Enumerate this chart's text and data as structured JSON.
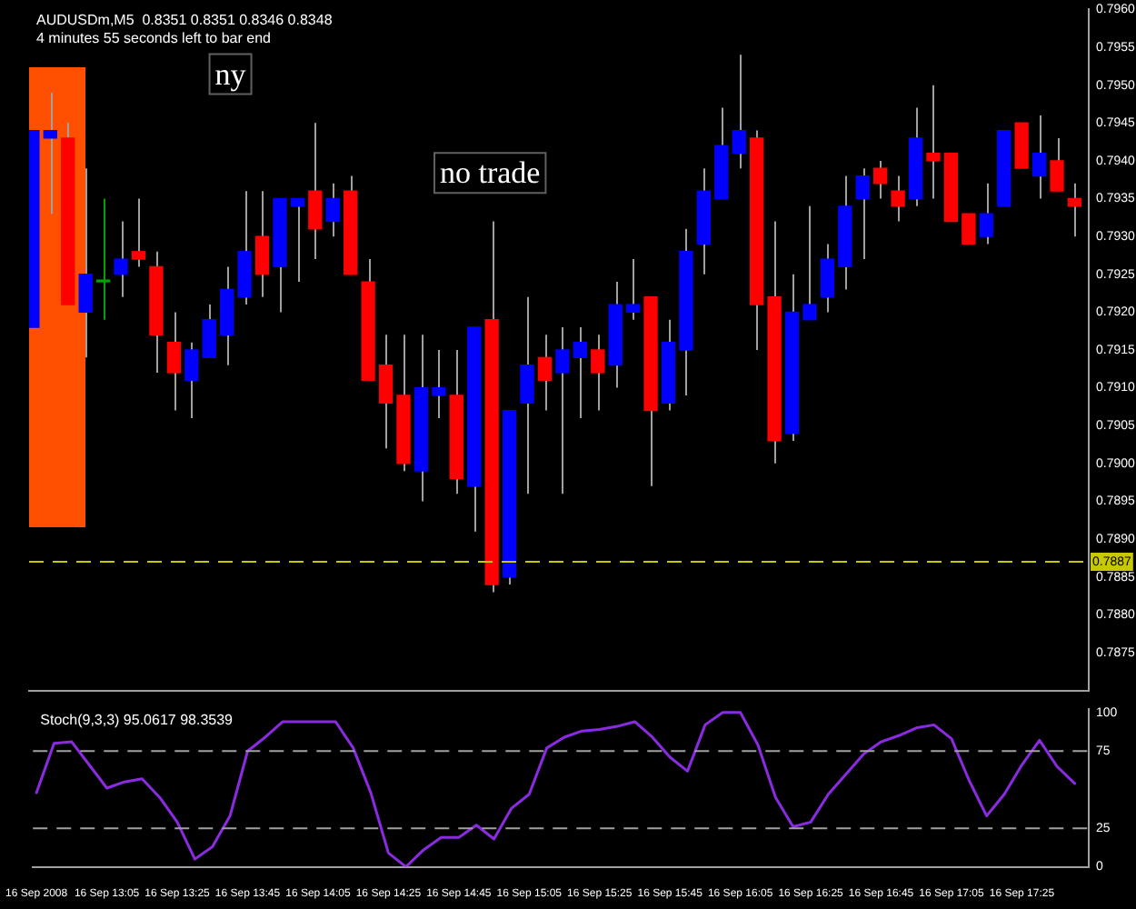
{
  "chart_data": [
    {
      "type": "candlestick",
      "title": "AUDUSDm,M5  0.8351 0.8351 0.8346 0.8348",
      "subtitle": "4 minutes 55 seconds left to bar end",
      "annotations": [
        "ny",
        "no trade"
      ],
      "x": [
        "2008-09-16T12:45",
        "2008-09-16T12:50",
        "2008-09-16T12:55",
        "2008-09-16T13:00",
        "2008-09-16T13:05",
        "2008-09-16T13:10",
        "2008-09-16T13:15",
        "2008-09-16T13:20",
        "2008-09-16T13:25",
        "2008-09-16T13:30",
        "2008-09-16T13:35",
        "2008-09-16T13:40",
        "2008-09-16T13:45",
        "2008-09-16T13:50",
        "2008-09-16T13:55",
        "2008-09-16T14:00",
        "2008-09-16T14:05",
        "2008-09-16T14:10",
        "2008-09-16T14:15",
        "2008-09-16T14:20",
        "2008-09-16T14:25",
        "2008-09-16T14:30",
        "2008-09-16T14:35",
        "2008-09-16T14:40",
        "2008-09-16T14:45",
        "2008-09-16T14:50",
        "2008-09-16T14:55",
        "2008-09-16T15:00",
        "2008-09-16T15:05",
        "2008-09-16T15:10",
        "2008-09-16T15:15",
        "2008-09-16T15:20",
        "2008-09-16T15:25",
        "2008-09-16T15:30",
        "2008-09-16T15:35",
        "2008-09-16T15:40",
        "2008-09-16T15:45",
        "2008-09-16T15:50",
        "2008-09-16T15:55",
        "2008-09-16T16:00",
        "2008-09-16T16:05",
        "2008-09-16T16:10",
        "2008-09-16T16:15",
        "2008-09-16T16:20",
        "2008-09-16T16:25",
        "2008-09-16T16:30",
        "2008-09-16T16:35",
        "2008-09-16T16:40",
        "2008-09-16T16:45",
        "2008-09-16T16:50",
        "2008-09-16T16:55",
        "2008-09-16T17:00",
        "2008-09-16T17:05",
        "2008-09-16T17:10",
        "2008-09-16T17:15",
        "2008-09-16T17:20",
        "2008-09-16T17:25",
        "2008-09-16T17:30",
        "2008-09-16T17:35",
        "2008-09-16T17:40"
      ],
      "ohlc": [
        [
          0.7918,
          0.7944,
          0.7918,
          0.7944
        ],
        [
          0.7943,
          0.7949,
          0.7933,
          0.7944
        ],
        [
          0.7943,
          0.7945,
          0.7921,
          0.7921
        ],
        [
          0.792,
          0.7939,
          0.7914,
          0.7925
        ],
        [
          0.7924,
          0.7935,
          0.7919,
          0.7924
        ],
        [
          0.7925,
          0.7932,
          0.7922,
          0.7927
        ],
        [
          0.7928,
          0.7935,
          0.7926,
          0.7927
        ],
        [
          0.7926,
          0.7928,
          0.7912,
          0.7917
        ],
        [
          0.7916,
          0.792,
          0.7907,
          0.7912
        ],
        [
          0.7911,
          0.7916,
          0.7906,
          0.7915
        ],
        [
          0.7914,
          0.7921,
          0.7914,
          0.7919
        ],
        [
          0.7917,
          0.7926,
          0.7913,
          0.7923
        ],
        [
          0.7922,
          0.7936,
          0.7921,
          0.7928
        ],
        [
          0.793,
          0.7936,
          0.7922,
          0.7925
        ],
        [
          0.7926,
          0.7935,
          0.792,
          0.7935
        ],
        [
          0.7934,
          0.7935,
          0.7924,
          0.7935
        ],
        [
          0.7936,
          0.7945,
          0.7927,
          0.7931
        ],
        [
          0.7932,
          0.7937,
          0.793,
          0.7935
        ],
        [
          0.7936,
          0.7938,
          0.7925,
          0.7925
        ],
        [
          0.7924,
          0.7927,
          0.7911,
          0.7911
        ],
        [
          0.7913,
          0.7917,
          0.7902,
          0.7908
        ],
        [
          0.7909,
          0.7917,
          0.7899,
          0.79
        ],
        [
          0.7899,
          0.7917,
          0.7895,
          0.791
        ],
        [
          0.7909,
          0.7915,
          0.7906,
          0.791
        ],
        [
          0.7909,
          0.7915,
          0.7896,
          0.7898
        ],
        [
          0.7897,
          0.7918,
          0.7891,
          0.7918
        ],
        [
          0.7919,
          0.7932,
          0.7883,
          0.7884
        ],
        [
          0.7885,
          0.7907,
          0.7884,
          0.7907
        ],
        [
          0.7908,
          0.7922,
          0.7896,
          0.7913
        ],
        [
          0.7914,
          0.7917,
          0.7907,
          0.7911
        ],
        [
          0.7912,
          0.7918,
          0.7896,
          0.7915
        ],
        [
          0.7914,
          0.7918,
          0.7906,
          0.7916
        ],
        [
          0.7915,
          0.7917,
          0.7907,
          0.7912
        ],
        [
          0.7913,
          0.7924,
          0.791,
          0.7921
        ],
        [
          0.792,
          0.7927,
          0.7919,
          0.7921
        ],
        [
          0.7922,
          0.7922,
          0.7897,
          0.7907
        ],
        [
          0.7908,
          0.7919,
          0.7907,
          0.7916
        ],
        [
          0.7915,
          0.7931,
          0.7909,
          0.7928
        ],
        [
          0.7929,
          0.7939,
          0.7925,
          0.7936
        ],
        [
          0.7935,
          0.7947,
          0.7935,
          0.7942
        ],
        [
          0.7941,
          0.7954,
          0.7939,
          0.7944
        ],
        [
          0.7943,
          0.7944,
          0.7915,
          0.7921
        ],
        [
          0.7922,
          0.7932,
          0.79,
          0.7903
        ],
        [
          0.7904,
          0.7925,
          0.7903,
          0.792
        ],
        [
          0.7919,
          0.7934,
          0.7919,
          0.7921
        ],
        [
          0.7922,
          0.7929,
          0.792,
          0.7927
        ],
        [
          0.7926,
          0.7938,
          0.7923,
          0.7934
        ],
        [
          0.7935,
          0.7939,
          0.7927,
          0.7938
        ],
        [
          0.7939,
          0.794,
          0.7935,
          0.7937
        ],
        [
          0.7936,
          0.7938,
          0.7932,
          0.7934
        ],
        [
          0.7935,
          0.7947,
          0.7934,
          0.7943
        ],
        [
          0.7941,
          0.795,
          0.7935,
          0.794
        ],
        [
          0.7941,
          0.7941,
          0.7932,
          0.7932
        ],
        [
          0.7933,
          0.7933,
          0.7929,
          0.7929
        ],
        [
          0.793,
          0.7937,
          0.7929,
          0.7933
        ],
        [
          0.7934,
          0.7944,
          0.7934,
          0.7944
        ],
        [
          0.7945,
          0.7945,
          0.7939,
          0.7939
        ],
        [
          0.7938,
          0.7946,
          0.7935,
          0.7941
        ],
        [
          0.794,
          0.7943,
          0.7936,
          0.7936
        ],
        [
          0.7935,
          0.7937,
          0.793,
          0.7934
        ]
      ],
      "colors": [
        "#0000ff",
        "#0000ff",
        "#ff0000",
        "#0000ff",
        "#00a000",
        "#0000ff",
        "#ff0000",
        "#ff0000",
        "#ff0000",
        "#0000ff",
        "#0000ff",
        "#0000ff",
        "#0000ff",
        "#ff0000",
        "#0000ff",
        "#0000ff",
        "#ff0000",
        "#0000ff",
        "#ff0000",
        "#ff0000",
        "#ff0000",
        "#ff0000",
        "#0000ff",
        "#0000ff",
        "#ff0000",
        "#0000ff",
        "#ff0000",
        "#0000ff",
        "#0000ff",
        "#ff0000",
        "#0000ff",
        "#0000ff",
        "#ff0000",
        "#0000ff",
        "#0000ff",
        "#ff0000",
        "#0000ff",
        "#0000ff",
        "#0000ff",
        "#0000ff",
        "#0000ff",
        "#ff0000",
        "#ff0000",
        "#0000ff",
        "#0000ff",
        "#0000ff",
        "#0000ff",
        "#0000ff",
        "#ff0000",
        "#ff0000",
        "#0000ff",
        "#ff0000",
        "#ff0000",
        "#ff0000",
        "#0000ff",
        "#0000ff",
        "#ff0000",
        "#0000ff",
        "#ff0000",
        "#ff0000"
      ],
      "xlim": [
        "2008-09-16T12:44",
        "2008-09-16T17:44"
      ],
      "ylim": [
        0.787,
        0.796
      ],
      "yticks": [
        0.7875,
        {
          "value": 0.788,
          "label": "0.7880"
        },
        0.7885,
        {
          "value": 0.789,
          "label": "0.7890"
        },
        0.7895,
        {
          "value": 0.79,
          "label": "0.7900"
        },
        0.7905,
        {
          "value": 0.791,
          "label": "0.7910"
        },
        0.7915,
        {
          "value": 0.792,
          "label": "0.7920"
        },
        0.7925,
        {
          "value": 0.793,
          "label": "0.7930"
        },
        0.7935,
        {
          "value": 0.794,
          "label": "0.7940"
        },
        0.7945,
        {
          "value": 0.795,
          "label": "0.7950"
        },
        0.7955,
        {
          "value": 0.796,
          "label": "0.7960"
        }
      ],
      "tick_labels": "y",
      "ref_lines": [
        {
          "axis": "y",
          "value": 0.7887,
          "label": "0.7887",
          "color": "#c8c800",
          "line_style": "dashed"
        }
      ]
    },
    {
      "type": "line",
      "title": "Stoch(9,3,3) 95.0617 98.3539",
      "x": [
        "2008-09-16T12:45",
        "2008-09-16T12:50",
        "2008-09-16T12:55",
        "2008-09-16T13:00",
        "2008-09-16T13:05",
        "2008-09-16T13:10",
        "2008-09-16T13:15",
        "2008-09-16T13:20",
        "2008-09-16T13:25",
        "2008-09-16T13:30",
        "2008-09-16T13:35",
        "2008-09-16T13:40",
        "2008-09-16T13:45",
        "2008-09-16T13:50",
        "2008-09-16T13:55",
        "2008-09-16T14:00",
        "2008-09-16T14:05",
        "2008-09-16T14:10",
        "2008-09-16T14:15",
        "2008-09-16T14:20",
        "2008-09-16T14:25",
        "2008-09-16T14:30",
        "2008-09-16T14:35",
        "2008-09-16T14:40",
        "2008-09-16T14:45",
        "2008-09-16T14:50",
        "2008-09-16T14:55",
        "2008-09-16T15:00",
        "2008-09-16T15:05",
        "2008-09-16T15:10",
        "2008-09-16T15:15",
        "2008-09-16T15:20",
        "2008-09-16T15:25",
        "2008-09-16T15:30",
        "2008-09-16T15:35",
        "2008-09-16T15:40",
        "2008-09-16T15:45",
        "2008-09-16T15:50",
        "2008-09-16T15:55",
        "2008-09-16T16:00",
        "2008-09-16T16:05",
        "2008-09-16T16:10",
        "2008-09-16T16:15",
        "2008-09-16T16:20",
        "2008-09-16T16:25",
        "2008-09-16T16:30",
        "2008-09-16T16:35",
        "2008-09-16T16:40",
        "2008-09-16T16:45",
        "2008-09-16T16:50",
        "2008-09-16T16:55",
        "2008-09-16T17:00",
        "2008-09-16T17:05",
        "2008-09-16T17:10",
        "2008-09-16T17:15",
        "2008-09-16T17:20",
        "2008-09-16T17:25",
        "2008-09-16T17:30",
        "2008-09-16T17:35",
        "2008-09-16T17:40"
      ],
      "series": [
        {
          "color": "#8a2be2",
          "values": [
            48,
            80,
            81,
            66,
            51,
            55,
            57,
            45,
            29,
            5,
            13,
            33,
            75,
            84,
            94,
            94,
            94,
            94,
            77,
            48,
            9,
            0,
            11,
            19,
            19,
            27,
            18,
            38,
            47,
            77,
            84,
            88,
            89,
            91,
            94,
            84,
            71,
            62,
            92,
            100,
            100,
            79,
            45,
            26,
            29,
            47,
            60,
            73,
            81,
            85,
            90,
            92,
            83,
            56,
            33,
            47,
            66,
            82,
            65,
            54
          ]
        }
      ],
      "xlim": [
        "2008-09-16T12:44",
        "2008-09-16T17:44"
      ],
      "xticks": [
        {
          "value": "2008-09-16T12:45",
          "label": "16 Sep 2008"
        },
        {
          "value": "2008-09-16T13:05",
          "label": "16 Sep 13:05"
        },
        {
          "value": "2008-09-16T13:25",
          "label": "16 Sep 13:25"
        },
        {
          "value": "2008-09-16T13:45",
          "label": "16 Sep 13:45"
        },
        {
          "value": "2008-09-16T14:05",
          "label": "16 Sep 14:05"
        },
        {
          "value": "2008-09-16T14:25",
          "label": "16 Sep 14:25"
        },
        {
          "value": "2008-09-16T14:45",
          "label": "16 Sep 14:45"
        },
        {
          "value": "2008-09-16T15:05",
          "label": "16 Sep 15:05"
        },
        {
          "value": "2008-09-16T15:25",
          "label": "16 Sep 15:25"
        },
        {
          "value": "2008-09-16T15:45",
          "label": "16 Sep 15:45"
        },
        {
          "value": "2008-09-16T16:05",
          "label": "16 Sep 16:05"
        },
        {
          "value": "2008-09-16T16:25",
          "label": "16 Sep 16:25"
        },
        {
          "value": "2008-09-16T16:45",
          "label": "16 Sep 16:45"
        },
        {
          "value": "2008-09-16T17:05",
          "label": "16 Sep 17:05"
        },
        {
          "value": "2008-09-16T17:25",
          "label": "16 Sep 17:25"
        }
      ],
      "ylim": [
        0,
        102
      ],
      "yticks": [
        0,
        25,
        75,
        100
      ],
      "marker": "none",
      "line_style": "solid",
      "ref_lines": [
        {
          "axis": "y",
          "value": 25,
          "color": "#a0a0a0",
          "line_style": "dashed"
        },
        {
          "axis": "y",
          "value": 75,
          "color": "#a0a0a0",
          "line_style": "dashed"
        }
      ]
    }
  ]
}
